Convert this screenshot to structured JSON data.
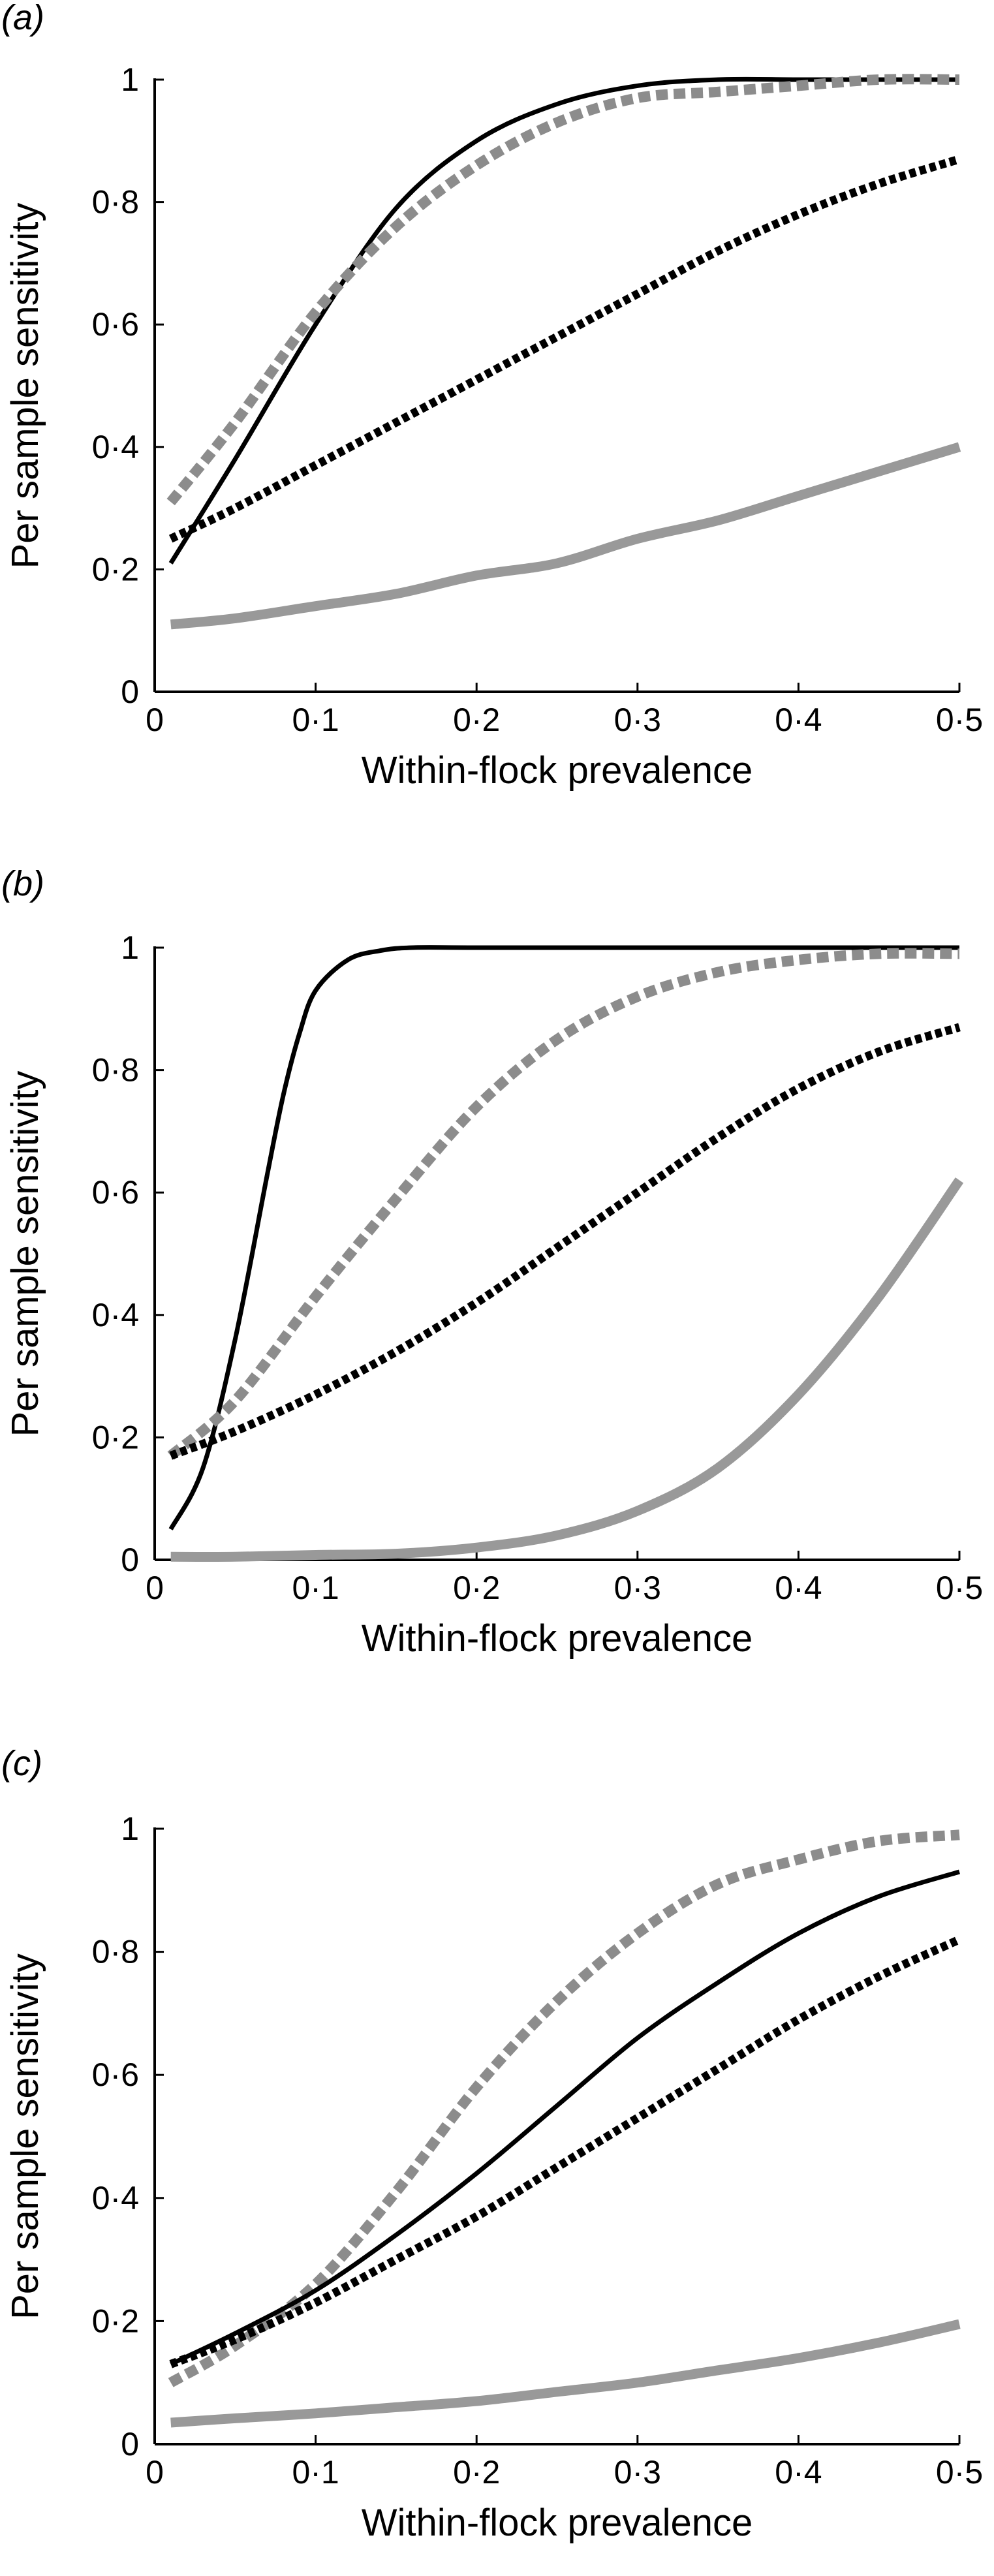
{
  "chart_data": [
    {
      "type": "line",
      "panel_label": "(a)",
      "xlabel": "Within-flock prevalence",
      "ylabel": "Per sample sensitivity",
      "xlim": [
        0,
        0.5
      ],
      "ylim": [
        0,
        1
      ],
      "x_ticks": [
        0,
        0.1,
        0.2,
        0.3,
        0.4,
        0.5
      ],
      "x_tick_labels": [
        "0",
        "0·1",
        "0·2",
        "0·3",
        "0·4",
        "0·5"
      ],
      "y_ticks": [
        0,
        0.2,
        0.4,
        0.6,
        0.8,
        1
      ],
      "y_tick_labels": [
        "0",
        "0·2",
        "0·4",
        "0·6",
        "0·8",
        "1"
      ],
      "grid": false,
      "legend": "none",
      "series": [
        {
          "style": "solid-black",
          "color": "#000000",
          "x": [
            0.01,
            0.05,
            0.1,
            0.15,
            0.2,
            0.25,
            0.3,
            0.35,
            0.4,
            0.45,
            0.5
          ],
          "y": [
            0.21,
            0.38,
            0.6,
            0.79,
            0.9,
            0.96,
            0.99,
            1.0,
            1.0,
            1.0,
            1.0
          ]
        },
        {
          "style": "dashed-grey",
          "color": "#8c8c8c",
          "x": [
            0.01,
            0.05,
            0.1,
            0.15,
            0.2,
            0.25,
            0.3,
            0.35,
            0.4,
            0.45,
            0.5
          ],
          "y": [
            0.31,
            0.44,
            0.62,
            0.76,
            0.86,
            0.93,
            0.97,
            0.98,
            0.99,
            1.0,
            1.0
          ]
        },
        {
          "style": "dashed-black",
          "color": "#000000",
          "x": [
            0.01,
            0.05,
            0.1,
            0.15,
            0.2,
            0.25,
            0.3,
            0.35,
            0.4,
            0.45,
            0.5
          ],
          "y": [
            0.25,
            0.3,
            0.37,
            0.44,
            0.51,
            0.58,
            0.65,
            0.72,
            0.78,
            0.83,
            0.87
          ]
        },
        {
          "style": "solid-grey",
          "color": "#999999",
          "x": [
            0.01,
            0.05,
            0.1,
            0.15,
            0.2,
            0.25,
            0.3,
            0.35,
            0.4,
            0.45,
            0.5
          ],
          "y": [
            0.11,
            0.12,
            0.14,
            0.16,
            0.19,
            0.21,
            0.25,
            0.28,
            0.32,
            0.36,
            0.4
          ]
        }
      ]
    },
    {
      "type": "line",
      "panel_label": "(b)",
      "xlabel": "Within-flock prevalence",
      "ylabel": "Per sample sensitivity",
      "xlim": [
        0,
        0.5
      ],
      "ylim": [
        0,
        1
      ],
      "x_ticks": [
        0,
        0.1,
        0.2,
        0.3,
        0.4,
        0.5
      ],
      "x_tick_labels": [
        "0",
        "0·1",
        "0·2",
        "0·3",
        "0·4",
        "0·5"
      ],
      "y_ticks": [
        0,
        0.2,
        0.4,
        0.6,
        0.8,
        1
      ],
      "y_tick_labels": [
        "0",
        "0·2",
        "0·4",
        "0·6",
        "0·8",
        "1"
      ],
      "grid": false,
      "legend": "none",
      "series": [
        {
          "style": "solid-black",
          "color": "#000000",
          "x": [
            0.01,
            0.03,
            0.05,
            0.07,
            0.08,
            0.09,
            0.1,
            0.12,
            0.14,
            0.16,
            0.2,
            0.3,
            0.4,
            0.5
          ],
          "y": [
            0.05,
            0.15,
            0.36,
            0.63,
            0.76,
            0.86,
            0.93,
            0.98,
            0.995,
            1.0,
            1.0,
            1.0,
            1.0,
            1.0
          ]
        },
        {
          "style": "dashed-grey",
          "color": "#8c8c8c",
          "x": [
            0.01,
            0.05,
            0.1,
            0.15,
            0.2,
            0.25,
            0.3,
            0.35,
            0.4,
            0.45,
            0.5
          ],
          "y": [
            0.17,
            0.26,
            0.43,
            0.59,
            0.74,
            0.85,
            0.92,
            0.96,
            0.98,
            0.99,
            0.99
          ]
        },
        {
          "style": "dashed-black",
          "color": "#000000",
          "x": [
            0.01,
            0.05,
            0.1,
            0.15,
            0.2,
            0.25,
            0.3,
            0.35,
            0.4,
            0.45,
            0.5
          ],
          "y": [
            0.17,
            0.21,
            0.27,
            0.34,
            0.42,
            0.51,
            0.6,
            0.69,
            0.77,
            0.83,
            0.87
          ]
        },
        {
          "style": "solid-grey",
          "color": "#999999",
          "x": [
            0.01,
            0.05,
            0.1,
            0.15,
            0.2,
            0.25,
            0.3,
            0.35,
            0.4,
            0.45,
            0.5
          ],
          "y": [
            0.005,
            0.005,
            0.008,
            0.01,
            0.02,
            0.04,
            0.08,
            0.15,
            0.27,
            0.43,
            0.62
          ]
        }
      ]
    },
    {
      "type": "line",
      "panel_label": "(c)",
      "xlabel": "Within-flock prevalence",
      "ylabel": "Per sample sensitivity",
      "xlim": [
        0,
        0.5
      ],
      "ylim": [
        0,
        1
      ],
      "x_ticks": [
        0,
        0.1,
        0.2,
        0.3,
        0.4,
        0.5
      ],
      "x_tick_labels": [
        "0",
        "0·1",
        "0·2",
        "0·3",
        "0·4",
        "0·5"
      ],
      "y_ticks": [
        0,
        0.2,
        0.4,
        0.6,
        0.8,
        1
      ],
      "y_tick_labels": [
        "0",
        "0·2",
        "0·4",
        "0·6",
        "0·8",
        "1"
      ],
      "grid": false,
      "legend": "none",
      "series": [
        {
          "style": "dashed-grey",
          "color": "#8c8c8c",
          "x": [
            0.01,
            0.05,
            0.1,
            0.15,
            0.2,
            0.25,
            0.3,
            0.35,
            0.4,
            0.45,
            0.5
          ],
          "y": [
            0.1,
            0.16,
            0.26,
            0.41,
            0.58,
            0.72,
            0.83,
            0.91,
            0.95,
            0.98,
            0.99
          ]
        },
        {
          "style": "solid-black",
          "color": "#000000",
          "x": [
            0.01,
            0.05,
            0.1,
            0.15,
            0.2,
            0.25,
            0.3,
            0.35,
            0.4,
            0.45,
            0.5
          ],
          "y": [
            0.13,
            0.18,
            0.25,
            0.34,
            0.44,
            0.55,
            0.66,
            0.75,
            0.83,
            0.89,
            0.93
          ]
        },
        {
          "style": "dashed-black",
          "color": "#000000",
          "x": [
            0.01,
            0.05,
            0.1,
            0.15,
            0.2,
            0.25,
            0.3,
            0.35,
            0.4,
            0.45,
            0.5
          ],
          "y": [
            0.13,
            0.17,
            0.23,
            0.3,
            0.37,
            0.45,
            0.53,
            0.61,
            0.69,
            0.76,
            0.82
          ]
        },
        {
          "style": "solid-grey",
          "color": "#999999",
          "x": [
            0.01,
            0.05,
            0.1,
            0.15,
            0.2,
            0.25,
            0.3,
            0.35,
            0.4,
            0.45,
            0.5
          ],
          "y": [
            0.035,
            0.042,
            0.05,
            0.06,
            0.07,
            0.085,
            0.1,
            0.12,
            0.14,
            0.165,
            0.195
          ]
        }
      ]
    }
  ]
}
